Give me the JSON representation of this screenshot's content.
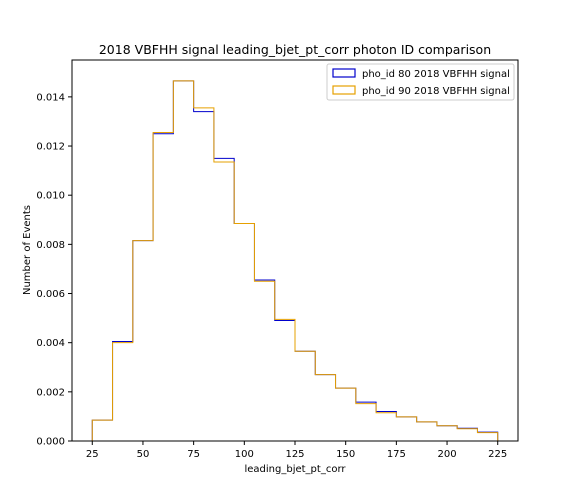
{
  "chart_data": {
    "type": "histogram",
    "title": "2018 VBFHH signal leading_bjet_pt_corr photon ID comparison",
    "xlabel": "leading_bjet_pt_corr",
    "ylabel": "Number of Events",
    "xlim": [
      15,
      235
    ],
    "ylim": [
      0,
      0.0155
    ],
    "xticks": [
      25,
      50,
      75,
      100,
      125,
      150,
      175,
      200,
      225
    ],
    "yticks": [
      0.0,
      0.002,
      0.004,
      0.006,
      0.008,
      0.01,
      0.012,
      0.014
    ],
    "ytick_labels": [
      "0.000",
      "0.002",
      "0.004",
      "0.006",
      "0.008",
      "0.010",
      "0.012",
      "0.014"
    ],
    "bin_edges": [
      25,
      35,
      45,
      55,
      65,
      75,
      85,
      95,
      105,
      115,
      125,
      135,
      145,
      155,
      165,
      175,
      185,
      195,
      205,
      215,
      225
    ],
    "legend_position": "top-right",
    "series": [
      {
        "name": "pho_id 80 2018 VBFHH signal",
        "color": "#0000cc",
        "values": [
          0.00085,
          0.00405,
          0.00815,
          0.0125,
          0.01465,
          0.0134,
          0.0115,
          0.00885,
          0.00655,
          0.0049,
          0.00365,
          0.0027,
          0.00215,
          0.00158,
          0.0012,
          0.00098,
          0.00078,
          0.00062,
          0.00052,
          0.00036
        ]
      },
      {
        "name": "pho_id 90 2018 VBFHH signal",
        "color": "#e6a000",
        "values": [
          0.00085,
          0.004,
          0.00815,
          0.01255,
          0.01465,
          0.01355,
          0.01135,
          0.00885,
          0.0065,
          0.00495,
          0.00365,
          0.0027,
          0.00215,
          0.00152,
          0.00115,
          0.00098,
          0.00078,
          0.00062,
          0.0005,
          0.00034
        ]
      }
    ]
  }
}
